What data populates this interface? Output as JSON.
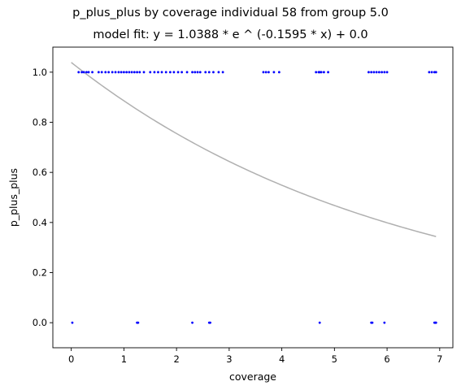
{
  "chart_data": {
    "type": "scatter",
    "title": "p_plus_plus by coverage individual 58 from group 5.0",
    "subtitle": "model fit: y = 1.0388 * e ^ (-0.1595 * x) + 0.0",
    "xlabel": "coverage",
    "ylabel": "p_plus_plus",
    "xlim": [
      -0.35,
      7.25
    ],
    "ylim": [
      -0.1,
      1.1
    ],
    "xticks": [
      0,
      1,
      2,
      3,
      4,
      5,
      6,
      7
    ],
    "yticks": [
      0.0,
      0.2,
      0.4,
      0.6,
      0.8,
      1.0
    ],
    "ytick_labels": [
      "0.0",
      "0.2",
      "0.4",
      "0.6",
      "0.8",
      "1.0"
    ],
    "grid": false,
    "colors": {
      "points": "#0000ff",
      "fit_line": "#b0b0b0"
    },
    "points_y1": [
      0.14,
      0.2,
      0.24,
      0.29,
      0.33,
      0.4,
      0.52,
      0.58,
      0.65,
      0.71,
      0.78,
      0.84,
      0.9,
      0.95,
      1.0,
      1.05,
      1.1,
      1.15,
      1.2,
      1.25,
      1.3,
      1.38,
      1.5,
      1.58,
      1.65,
      1.72,
      1.8,
      1.88,
      1.95,
      2.03,
      2.1,
      2.2,
      2.3,
      2.35,
      2.4,
      2.45,
      2.55,
      2.62,
      2.7,
      2.8,
      2.88,
      3.65,
      3.7,
      3.75,
      3.85,
      3.95,
      4.65,
      4.7,
      4.72,
      4.75,
      4.8,
      4.88,
      5.65,
      5.7,
      5.75,
      5.8,
      5.85,
      5.9,
      5.95,
      6.0,
      6.8,
      6.85,
      6.9,
      6.93
    ],
    "points_y0": [
      0.02,
      1.25,
      1.27,
      2.3,
      2.62,
      2.64,
      4.72,
      5.7,
      5.72,
      5.95,
      6.9,
      6.92,
      6.93
    ],
    "fit": {
      "a": 1.0388,
      "b": -0.1595,
      "c": 0.0,
      "x_start": 0.0,
      "x_end": 6.93
    }
  }
}
